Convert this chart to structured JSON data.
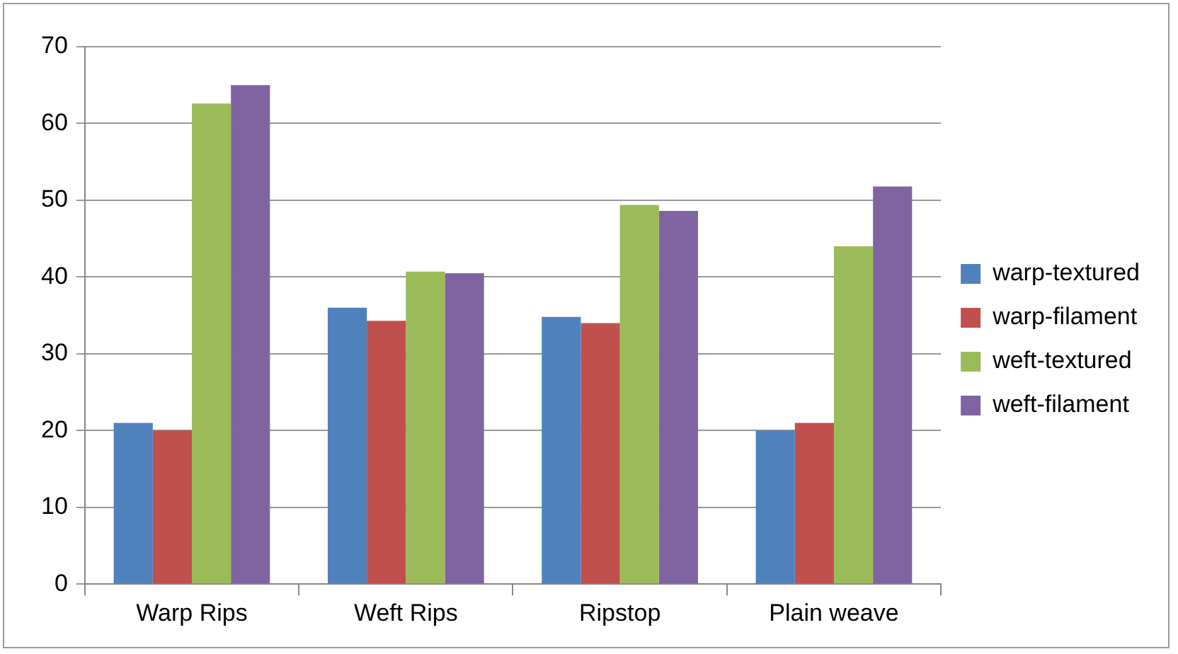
{
  "chart_data": {
    "type": "bar",
    "categories": [
      "Warp Rips",
      "Weft Rips",
      "Ripstop",
      "Plain weave"
    ],
    "series": [
      {
        "name": "warp-textured",
        "color": "#4f81bd",
        "values": [
          21,
          36,
          34.8,
          20
        ]
      },
      {
        "name": "warp-filament",
        "color": "#c0504d",
        "values": [
          20,
          34.3,
          34,
          21
        ]
      },
      {
        "name": "weft-textured",
        "color": "#9bbb59",
        "values": [
          62.6,
          40.7,
          49.4,
          44
        ]
      },
      {
        "name": "weft-filament",
        "color": "#8064a2",
        "values": [
          65,
          40.5,
          48.6,
          51.8
        ]
      }
    ],
    "ylim": [
      0,
      70
    ],
    "yticks": [
      0,
      10,
      20,
      30,
      40,
      50,
      60,
      70
    ],
    "grid": "y",
    "legend": "right"
  }
}
